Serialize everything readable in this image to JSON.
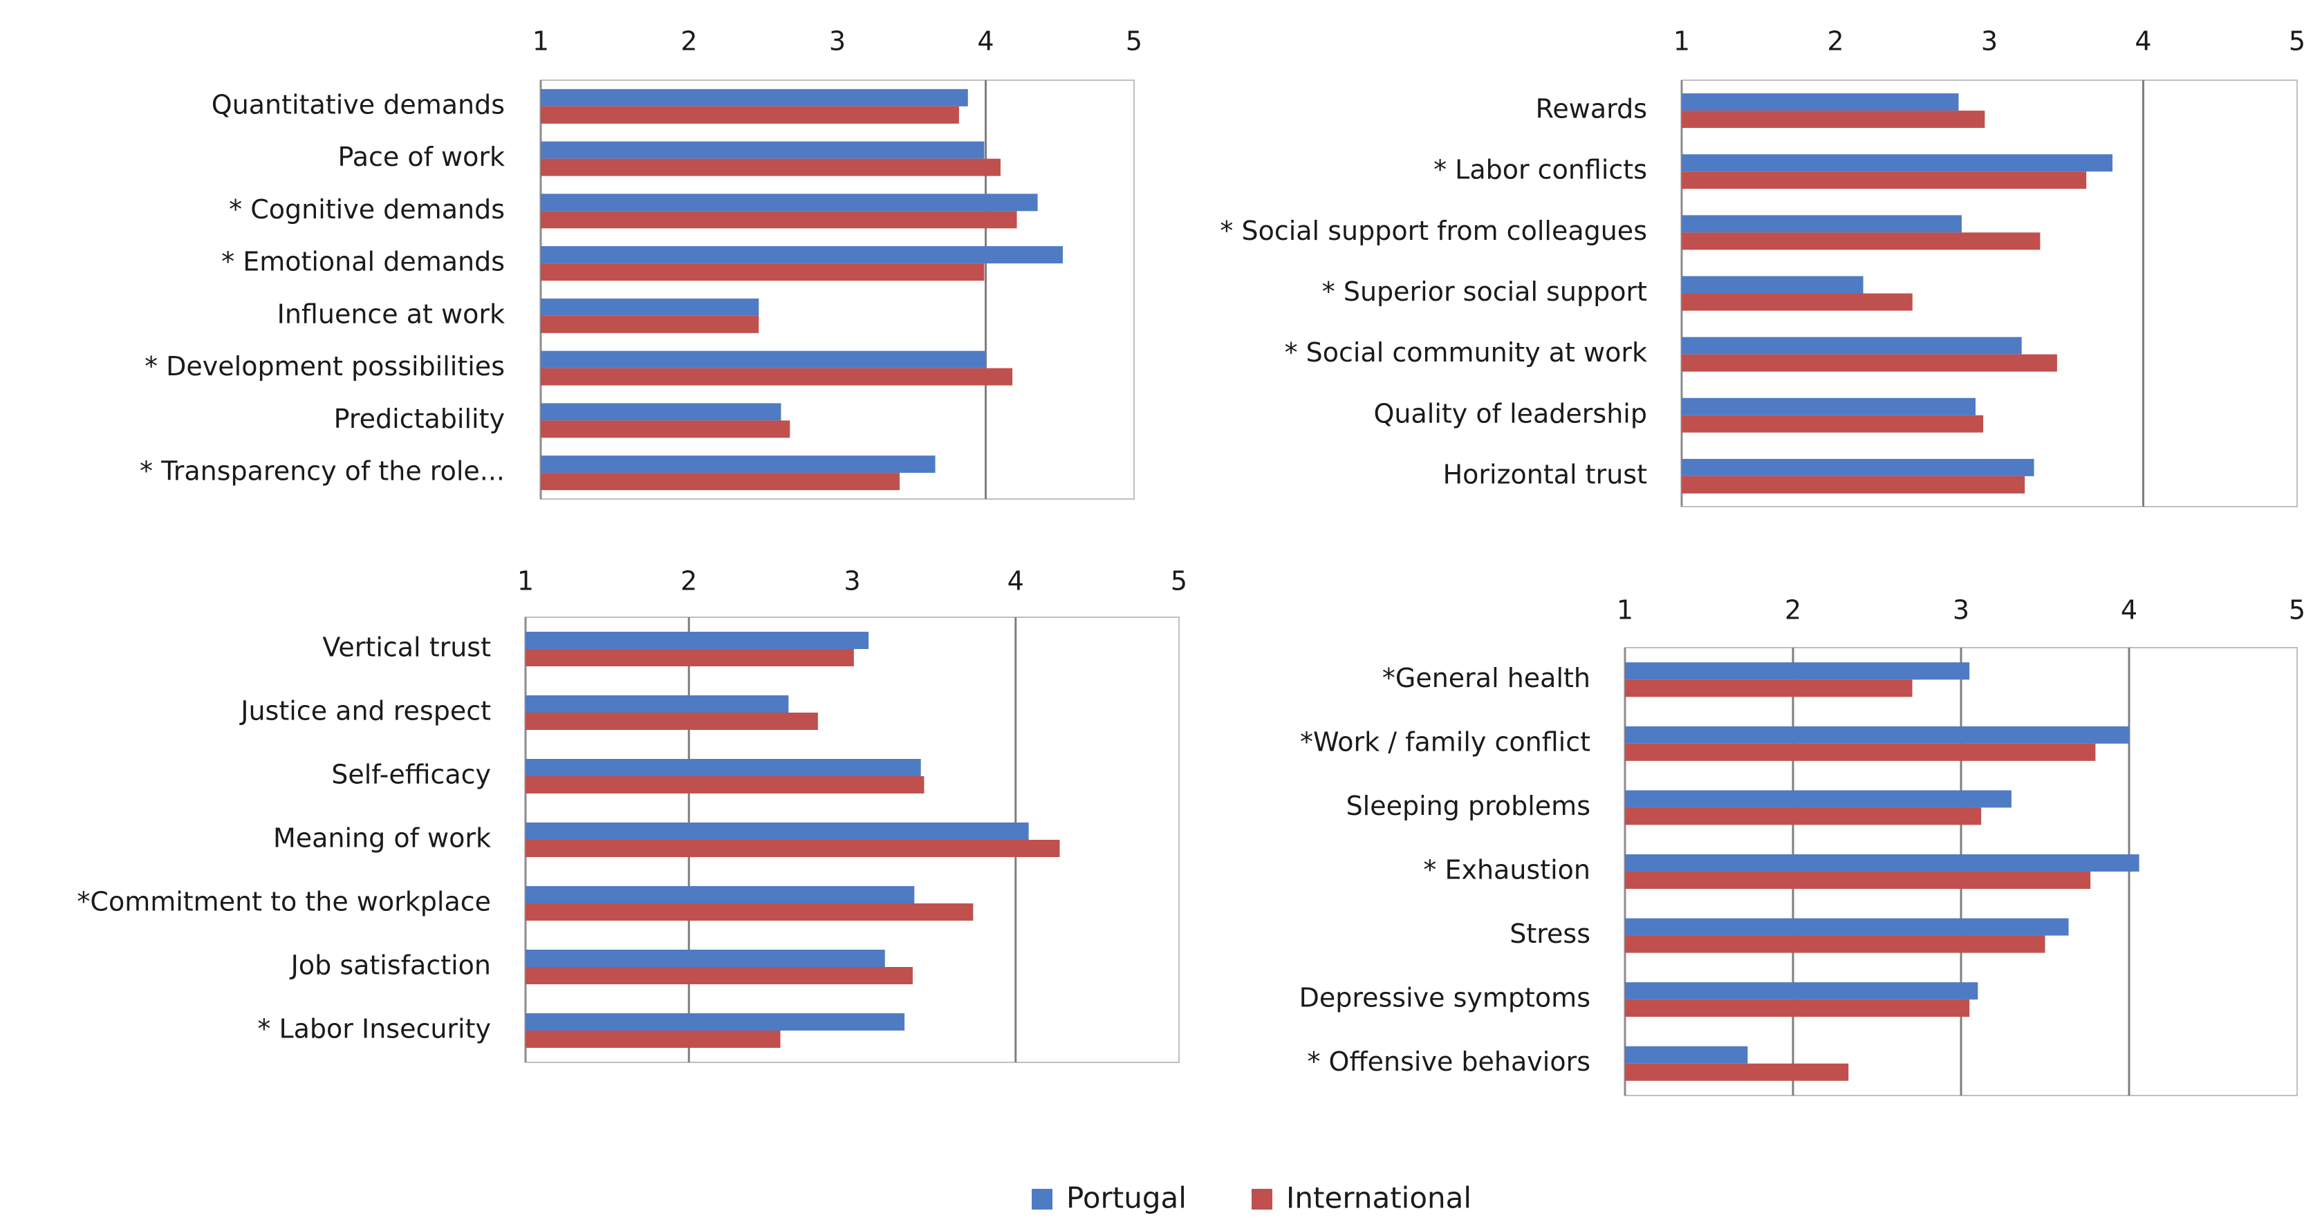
{
  "colors": {
    "portugal": "#4f7bc4",
    "international": "#c0504d",
    "gridline": "#7f7f7f",
    "frame": "#bfbfbf"
  },
  "legend": {
    "placement": "bottom",
    "items": [
      {
        "label": "Portugal",
        "color": "#4f7bc4"
      },
      {
        "label": "International",
        "color": "#c0504d"
      }
    ]
  },
  "chart_data": [
    {
      "type": "bar",
      "orientation": "horizontal",
      "xlim": [
        1,
        5
      ],
      "xticks": [
        "1",
        "2",
        "3",
        "4",
        "5"
      ],
      "axis_position": "top",
      "gridline_at": [
        4
      ],
      "categories": [
        "Quantitative demands",
        "Pace of work",
        "* Cognitive demands",
        "* Emotional demands",
        "Influence at work",
        "* Development possibilities",
        "Predictability",
        "* Transparency of the role..."
      ],
      "series": [
        {
          "name": "Portugal",
          "values": [
            3.88,
            3.99,
            4.35,
            4.52,
            2.47,
            4.0,
            2.62,
            3.66
          ]
        },
        {
          "name": "International",
          "values": [
            3.82,
            4.1,
            4.21,
            3.99,
            2.47,
            4.18,
            2.68,
            3.42
          ]
        }
      ]
    },
    {
      "type": "bar",
      "orientation": "horizontal",
      "xlim": [
        1,
        5
      ],
      "xticks": [
        "1",
        "2",
        "3",
        "4",
        "5"
      ],
      "axis_position": "top",
      "gridline_at": [
        4
      ],
      "categories": [
        "Rewards",
        "* Labor conflicts",
        "* Social support from colleagues",
        "* Superior social support",
        "* Social community at work",
        "Quality of leadership",
        "Horizontal trust"
      ],
      "series": [
        {
          "name": "Portugal",
          "values": [
            2.8,
            3.8,
            2.82,
            2.18,
            3.21,
            2.91,
            3.29
          ]
        },
        {
          "name": "International",
          "values": [
            2.97,
            3.63,
            3.33,
            2.5,
            3.44,
            2.96,
            3.23
          ]
        }
      ]
    },
    {
      "type": "bar",
      "orientation": "horizontal",
      "xlim": [
        1,
        5
      ],
      "xticks": [
        "1",
        "2",
        "3",
        "4",
        "5"
      ],
      "axis_position": "top",
      "gridline_at": [
        2,
        4
      ],
      "categories": [
        "Vertical trust",
        "Justice and respect",
        "Self-efficacy",
        "Meaning of work",
        "*Commitment to the workplace",
        "Job satisfaction",
        "* Labor Insecurity"
      ],
      "series": [
        {
          "name": "Portugal",
          "values": [
            3.1,
            2.61,
            3.42,
            4.08,
            3.38,
            3.2,
            3.32
          ]
        },
        {
          "name": "International",
          "values": [
            3.01,
            2.79,
            3.44,
            4.27,
            3.74,
            3.37,
            2.56
          ]
        }
      ]
    },
    {
      "type": "bar",
      "orientation": "horizontal",
      "xlim": [
        1,
        5
      ],
      "xticks": [
        "1",
        "2",
        "3",
        "4",
        "5"
      ],
      "axis_position": "top",
      "gridline_at": [
        2,
        3,
        4
      ],
      "categories": [
        "*General health",
        "*Work / family conflict",
        "Sleeping problems",
        "* Exhaustion",
        "Stress",
        "Depressive symptoms",
        "* Offensive behaviors"
      ],
      "series": [
        {
          "name": "Portugal",
          "values": [
            3.05,
            4.0,
            3.3,
            4.06,
            3.64,
            3.1,
            1.73
          ]
        },
        {
          "name": "International",
          "values": [
            2.71,
            3.8,
            3.12,
            3.77,
            3.5,
            3.05,
            2.33
          ]
        }
      ]
    }
  ]
}
